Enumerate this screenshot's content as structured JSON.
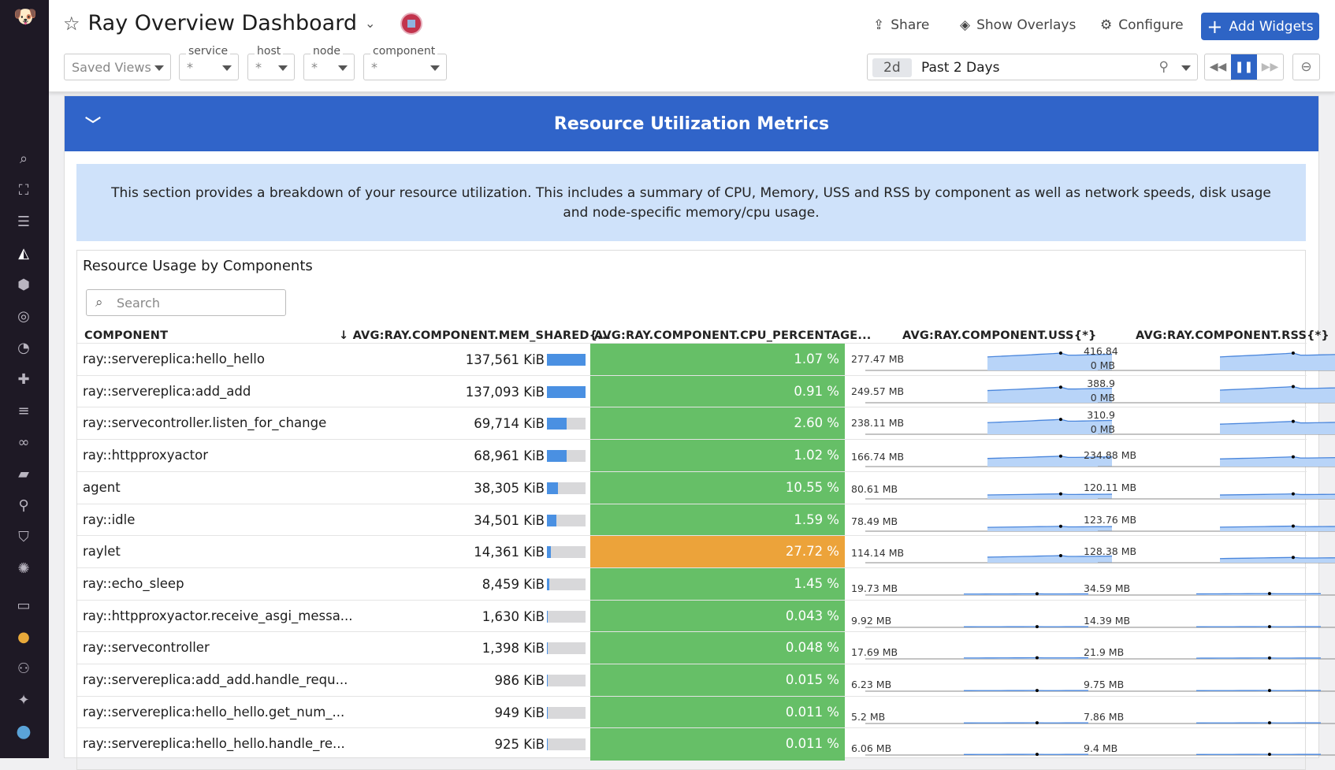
{
  "header": {
    "title": "Ray Overview Dashboard",
    "share": "Share",
    "overlays": "Show Overlays",
    "configure": "Configure",
    "add_widgets": "Add Widgets"
  },
  "filters": [
    {
      "label": "",
      "value": "Saved Views"
    },
    {
      "label": "service",
      "value": "*"
    },
    {
      "label": "host",
      "value": "*"
    },
    {
      "label": "node",
      "value": "*"
    },
    {
      "label": "component",
      "value": "*"
    }
  ],
  "time": {
    "badge": "2d",
    "label": "Past 2 Days"
  },
  "section": {
    "title": "Resource Utilization Metrics",
    "info": "This section provides a breakdown of your resource utilization. This includes a summary of CPU, Memory, USS and RSS by component as well as network speeds, disk usage and node-specific memory/cpu usage."
  },
  "widget": {
    "title": "Resource Usage by Components",
    "search_placeholder": "Search",
    "columns": [
      "COMPONENT",
      "AVG:RAY.COMPONENT.MEM_SHARED{...",
      "AVG:RAY.COMPONENT.CPU_PERCENTAGE...",
      "AVG:RAY.COMPONENT.USS{*}",
      "AVG:RAY.COMPONENT.RSS{*}"
    ],
    "colors": {
      "ok": "#66bf67",
      "warn": "#eca33a"
    },
    "rows": [
      {
        "c": "ray::servereplica:hello_hello",
        "mem": "137,561 KiB",
        "memv": 137561,
        "cpu": "1.07 %",
        "warn": false,
        "uss": "277.47 MB",
        "ussv": 277.47,
        "rss": "416.84",
        "rss2": "0 MB",
        "rssv": 416.84
      },
      {
        "c": "ray::servereplica:add_add",
        "mem": "137,093 KiB",
        "memv": 137093,
        "cpu": "0.91 %",
        "warn": false,
        "uss": "249.57 MB",
        "ussv": 249.57,
        "rss": "388.9",
        "rss2": "0 MB",
        "rssv": 388.9
      },
      {
        "c": "ray::servecontroller.listen_for_change",
        "mem": "69,714 KiB",
        "memv": 69714,
        "cpu": "2.60 %",
        "warn": false,
        "uss": "238.11 MB",
        "ussv": 238.11,
        "rss": "310.9",
        "rss2": "0 MB",
        "rssv": 310.9
      },
      {
        "c": "ray::httpproxyactor",
        "mem": "68,961 KiB",
        "memv": 68961,
        "cpu": "1.02 %",
        "warn": false,
        "uss": "166.74 MB",
        "ussv": 166.74,
        "rss": "234.88 MB",
        "rss2": "",
        "rssv": 234.88
      },
      {
        "c": "agent",
        "mem": "38,305 KiB",
        "memv": 38305,
        "cpu": "10.55 %",
        "warn": false,
        "uss": "80.61 MB",
        "ussv": 80.61,
        "rss": "120.11 MB",
        "rss2": "",
        "rssv": 120.11
      },
      {
        "c": "ray::idle",
        "mem": "34,501 KiB",
        "memv": 34501,
        "cpu": "1.59 %",
        "warn": false,
        "uss": "78.49 MB",
        "ussv": 78.49,
        "rss": "123.76 MB",
        "rss2": "",
        "rssv": 123.76
      },
      {
        "c": "raylet",
        "mem": "14,361 KiB",
        "memv": 14361,
        "cpu": "27.72 %",
        "warn": true,
        "uss": "114.14 MB",
        "ussv": 114.14,
        "rss": "128.38 MB",
        "rss2": "",
        "rssv": 128.38
      },
      {
        "c": "ray::echo_sleep",
        "mem": "8,459 KiB",
        "memv": 8459,
        "cpu": "1.45 %",
        "warn": false,
        "uss": "19.73 MB",
        "ussv": 19.73,
        "rss": "34.59 MB",
        "rss2": "",
        "rssv": 34.59
      },
      {
        "c": "ray::httpproxyactor.receive_asgi_messa...",
        "mem": "1,630 KiB",
        "memv": 1630,
        "cpu": "0.043 %",
        "warn": false,
        "uss": "9.92 MB",
        "ussv": 9.92,
        "rss": "14.39 MB",
        "rss2": "",
        "rssv": 14.39
      },
      {
        "c": "ray::servecontroller",
        "mem": "1,398 KiB",
        "memv": 1398,
        "cpu": "0.048 %",
        "warn": false,
        "uss": "17.69 MB",
        "ussv": 17.69,
        "rss": "21.9 MB",
        "rss2": "",
        "rssv": 21.9
      },
      {
        "c": "ray::servereplica:add_add.handle_requ...",
        "mem": "986 KiB",
        "memv": 986,
        "cpu": "0.015 %",
        "warn": false,
        "uss": "6.23 MB",
        "ussv": 6.23,
        "rss": "9.75 MB",
        "rss2": "",
        "rssv": 9.75
      },
      {
        "c": "ray::servereplica:hello_hello.get_num_...",
        "mem": "949 KiB",
        "memv": 949,
        "cpu": "0.011 %",
        "warn": false,
        "uss": "5.2 MB",
        "ussv": 5.2,
        "rss": "7.86 MB",
        "rss2": "",
        "rssv": 7.86
      },
      {
        "c": "ray::servereplica:hello_hello.handle_re...",
        "mem": "925 KiB",
        "memv": 925,
        "cpu": "0.011 %",
        "warn": false,
        "uss": "6.06 MB",
        "ussv": 6.06,
        "rss": "9.4 MB",
        "rss2": "",
        "rssv": 9.4
      }
    ]
  }
}
